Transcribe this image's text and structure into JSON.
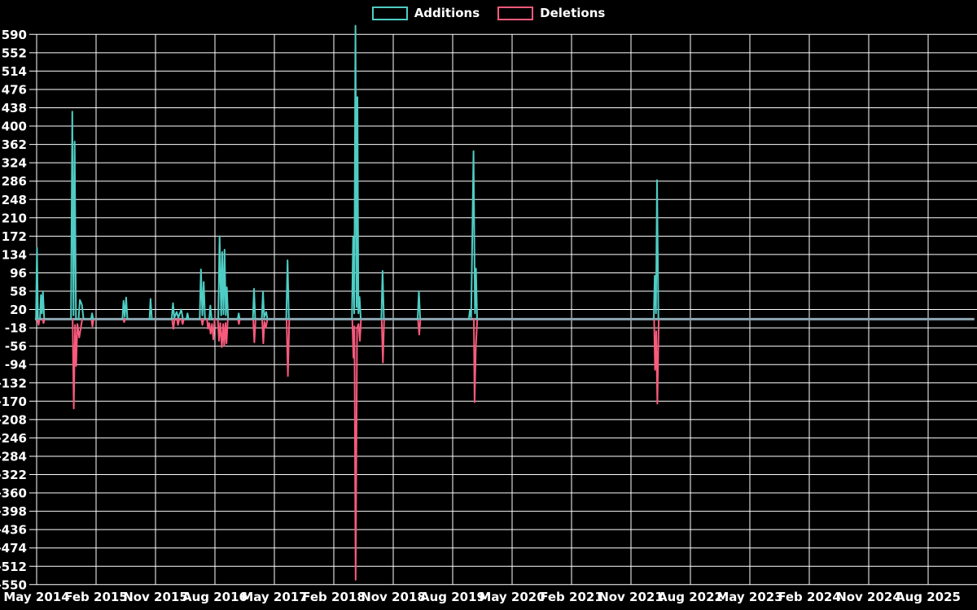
{
  "legend": {
    "items": [
      {
        "label": "Additions",
        "color": "#4ecdc4"
      },
      {
        "label": "Deletions",
        "color": "#f85a7c"
      }
    ]
  },
  "chart_data": {
    "type": "line",
    "title": "",
    "xlabel": "",
    "ylabel": "",
    "background": "#000000",
    "grid_color": "#ffffff",
    "text_color": "#ffffff",
    "zero_line_color": "#8fa8b4",
    "legend_position": "top-center",
    "grid": true,
    "ylim": [
      -550,
      590
    ],
    "y_tick_step": 38,
    "y_ticks": [
      590,
      552,
      514,
      476,
      438,
      400,
      362,
      324,
      286,
      248,
      210,
      172,
      134,
      96,
      58,
      20,
      -18,
      -56,
      -94,
      -132,
      -170,
      -208,
      -246,
      -284,
      -322,
      -360,
      -398,
      -436,
      -474,
      -512,
      -550
    ],
    "x_ticks": [
      "May 2014",
      "Feb 2015",
      "Nov 2015",
      "Aug 2016",
      "May 2017",
      "Feb 2018",
      "Nov 2018",
      "Aug 2019",
      "May 2020",
      "Feb 2021",
      "Nov 2021",
      "Aug 2022",
      "May 2023",
      "Feb 2024",
      "Nov 2024",
      "Aug 2025"
    ],
    "x_tick_interval_months": 9,
    "x_unit": "months since May 2014",
    "data_range_months": [
      -0.25,
      142
    ],
    "series": [
      {
        "name": "Additions",
        "color": "#4ecdc4",
        "segments": [
          [
            [
              -0.1,
              0
            ],
            [
              0.05,
              148
            ],
            [
              0.2,
              0
            ]
          ],
          [
            [
              0.5,
              0
            ],
            [
              0.65,
              50
            ],
            [
              0.8,
              12
            ],
            [
              0.95,
              58
            ],
            [
              1.15,
              0
            ]
          ],
          [
            [
              5.2,
              0
            ],
            [
              5.4,
              430
            ],
            [
              5.58,
              8
            ],
            [
              5.76,
              368
            ],
            [
              5.95,
              0
            ]
          ],
          [
            [
              6.35,
              0
            ],
            [
              6.55,
              40
            ],
            [
              6.85,
              30
            ],
            [
              7.1,
              0
            ]
          ],
          [
            [
              8.25,
              0
            ],
            [
              8.4,
              12
            ],
            [
              8.55,
              0
            ]
          ],
          [
            [
              13.0,
              0
            ],
            [
              13.15,
              38
            ],
            [
              13.35,
              5
            ],
            [
              13.55,
              45
            ],
            [
              13.75,
              0
            ]
          ],
          [
            [
              17.1,
              0
            ],
            [
              17.25,
              42
            ],
            [
              17.45,
              0
            ]
          ],
          [
            [
              20.45,
              0
            ],
            [
              20.65,
              33
            ],
            [
              20.85,
              3
            ],
            [
              21.2,
              15
            ],
            [
              21.45,
              3
            ],
            [
              21.9,
              20
            ],
            [
              22.15,
              0
            ]
          ],
          [
            [
              22.7,
              0
            ],
            [
              22.85,
              12
            ],
            [
              23.0,
              0
            ]
          ],
          [
            [
              24.7,
              0
            ],
            [
              24.88,
              103
            ],
            [
              25.1,
              8
            ],
            [
              25.3,
              77
            ],
            [
              25.5,
              0
            ]
          ],
          [
            [
              26.15,
              0
            ],
            [
              26.3,
              28
            ],
            [
              26.5,
              0
            ]
          ],
          [
            [
              27.5,
              0
            ],
            [
              27.7,
              172
            ],
            [
              27.95,
              8
            ],
            [
              28.1,
              139
            ],
            [
              28.3,
              10
            ],
            [
              28.45,
              144
            ],
            [
              28.65,
              8
            ],
            [
              28.8,
              66
            ],
            [
              29.0,
              0
            ]
          ],
          [
            [
              30.45,
              0
            ],
            [
              30.6,
              12
            ],
            [
              30.75,
              0
            ]
          ],
          [
            [
              32.75,
              0
            ],
            [
              32.92,
              63
            ],
            [
              33.1,
              0
            ]
          ],
          [
            [
              34.1,
              0
            ],
            [
              34.27,
              58
            ],
            [
              34.45,
              4
            ],
            [
              34.75,
              15
            ],
            [
              34.95,
              0
            ]
          ],
          [
            [
              37.8,
              0
            ],
            [
              38.0,
              122
            ],
            [
              38.2,
              0
            ]
          ],
          [
            [
              47.75,
              0
            ],
            [
              47.92,
              170
            ],
            [
              48.1,
              12
            ],
            [
              48.28,
              608
            ],
            [
              48.45,
              25
            ],
            [
              48.58,
              460
            ],
            [
              48.72,
              12
            ],
            [
              48.9,
              46
            ],
            [
              49.08,
              0
            ]
          ],
          [
            [
              52.2,
              0
            ],
            [
              52.38,
              100
            ],
            [
              52.58,
              0
            ]
          ],
          [
            [
              57.7,
              0
            ],
            [
              57.88,
              58
            ],
            [
              58.08,
              0
            ]
          ],
          [
            [
              65.45,
              0
            ],
            [
              65.6,
              18
            ],
            [
              65.8,
              4
            ],
            [
              66.15,
              348
            ],
            [
              66.38,
              12
            ],
            [
              66.52,
              105
            ],
            [
              66.7,
              0
            ]
          ],
          [
            [
              93.45,
              0
            ],
            [
              93.6,
              90
            ],
            [
              93.78,
              12
            ],
            [
              93.95,
              288
            ],
            [
              94.15,
              0
            ]
          ]
        ]
      },
      {
        "name": "Deletions",
        "color": "#f85a7c",
        "segments": [
          [
            [
              0.15,
              0
            ],
            [
              0.3,
              -12
            ],
            [
              0.45,
              0
            ]
          ],
          [
            [
              0.9,
              0
            ],
            [
              1.05,
              -8
            ],
            [
              1.2,
              0
            ]
          ],
          [
            [
              5.45,
              0
            ],
            [
              5.62,
              -185
            ],
            [
              5.82,
              -12
            ],
            [
              5.98,
              -97
            ],
            [
              6.18,
              -10
            ],
            [
              6.45,
              -38
            ],
            [
              6.9,
              0
            ]
          ],
          [
            [
              8.3,
              0
            ],
            [
              8.45,
              -15
            ],
            [
              8.62,
              0
            ]
          ],
          [
            [
              13.1,
              0
            ],
            [
              13.25,
              -6
            ],
            [
              13.42,
              0
            ]
          ],
          [
            [
              20.5,
              0
            ],
            [
              20.7,
              -20
            ],
            [
              20.9,
              0
            ]
          ],
          [
            [
              21.25,
              0
            ],
            [
              21.4,
              -12
            ],
            [
              21.6,
              0
            ]
          ],
          [
            [
              21.95,
              0
            ],
            [
              22.1,
              -10
            ],
            [
              22.3,
              0
            ]
          ],
          [
            [
              24.95,
              0
            ],
            [
              25.1,
              -12
            ],
            [
              25.28,
              0
            ]
          ],
          [
            [
              25.8,
              0
            ],
            [
              25.95,
              -20
            ],
            [
              26.15,
              -8
            ],
            [
              26.35,
              -30
            ],
            [
              26.55,
              -10
            ],
            [
              26.75,
              -42
            ],
            [
              26.95,
              0
            ]
          ],
          [
            [
              27.45,
              0
            ],
            [
              27.62,
              -45
            ],
            [
              27.8,
              -8
            ],
            [
              28.05,
              -58
            ],
            [
              28.25,
              -10
            ],
            [
              28.4,
              -55
            ],
            [
              28.6,
              -8
            ],
            [
              28.75,
              -50
            ],
            [
              28.95,
              0
            ]
          ],
          [
            [
              30.5,
              0
            ],
            [
              30.62,
              -10
            ],
            [
              30.78,
              0
            ]
          ],
          [
            [
              32.8,
              0
            ],
            [
              32.97,
              -48
            ],
            [
              33.15,
              0
            ]
          ],
          [
            [
              34.15,
              0
            ],
            [
              34.32,
              -50
            ],
            [
              34.5,
              -5
            ],
            [
              34.7,
              -18
            ],
            [
              34.95,
              0
            ]
          ],
          [
            [
              37.85,
              0
            ],
            [
              38.05,
              -118
            ],
            [
              38.25,
              0
            ]
          ],
          [
            [
              47.8,
              0
            ],
            [
              47.97,
              -80
            ],
            [
              48.12,
              -15
            ],
            [
              48.3,
              -540
            ],
            [
              48.52,
              -18
            ],
            [
              48.75,
              -10
            ],
            [
              48.95,
              -45
            ],
            [
              49.12,
              0
            ]
          ],
          [
            [
              52.25,
              0
            ],
            [
              52.43,
              -90
            ],
            [
              52.62,
              0
            ]
          ],
          [
            [
              57.75,
              0
            ],
            [
              57.93,
              -32
            ],
            [
              58.12,
              0
            ]
          ],
          [
            [
              66.2,
              0
            ],
            [
              66.32,
              -172
            ],
            [
              66.5,
              -60
            ],
            [
              66.72,
              0
            ]
          ],
          [
            [
              93.5,
              0
            ],
            [
              93.65,
              -105
            ],
            [
              93.82,
              -25
            ],
            [
              94.0,
              -175
            ],
            [
              94.2,
              0
            ]
          ]
        ]
      }
    ]
  }
}
